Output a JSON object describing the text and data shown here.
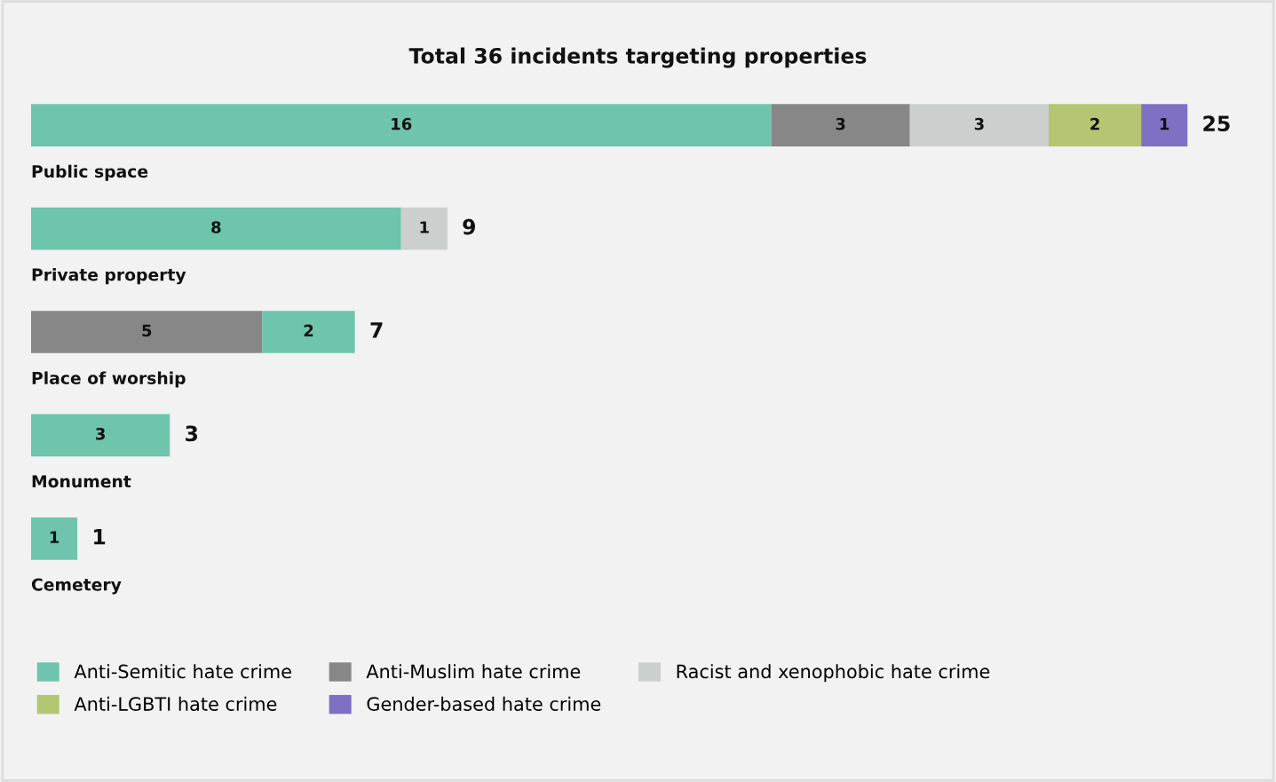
{
  "chart_data": {
    "type": "bar",
    "orientation": "horizontal",
    "stacked": true,
    "title": "Total 36 incidents targeting properties",
    "categories": [
      "Public space",
      "Private property",
      "Place of worship",
      "Monument",
      "Cemetery"
    ],
    "series": [
      {
        "color": "#878787",
        "values": [
          null,
          null,
          5,
          null,
          null
        ]
      },
      {
        "name": "Anti-Semitic hate crime",
        "color": "#6fc4ad",
        "values": [
          16,
          8,
          2,
          3,
          1
        ]
      },
      {
        "name": "Anti-Muslim hate crime",
        "color": "#878787",
        "values": [
          3,
          null,
          null,
          null,
          null
        ]
      },
      {
        "name": "Racist and xenophobic hate crime",
        "color": "#cbd0ce",
        "values": [
          3,
          1,
          null,
          null,
          null
        ]
      },
      {
        "name": "Anti-LGBTI hate crime",
        "color": "#b5c672",
        "values": [
          2,
          null,
          null,
          null,
          null
        ]
      },
      {
        "name": "Gender-based hate crime",
        "color": "#7f70c4",
        "values": [
          1,
          null,
          null,
          null,
          null
        ]
      }
    ],
    "data_labels": true,
    "totals": [
      "25",
      "9",
      "7",
      "3",
      "1"
    ],
    "legend": "bottom"
  }
}
